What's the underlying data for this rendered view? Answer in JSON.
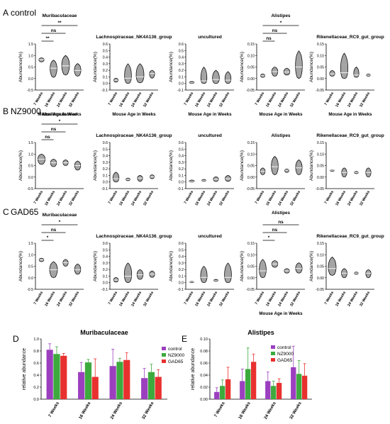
{
  "figure": {
    "panels_violin": [
      {
        "letter": "A",
        "group": "control",
        "ylabel": "Abundance(%)",
        "mid_xlabel": "Mouse Age in Weeks",
        "subplots": [
          {
            "title": "Muribaculaceae",
            "ylim": [
              -0.5,
              1.5
            ],
            "yticks": [
              "-0.5",
              "0.0",
              "0.5",
              "1.0",
              "1.5"
            ],
            "categories": [
              "7 Weeks",
              "16 Weeks",
              "24 Weeks",
              "32 Weeks"
            ],
            "medians": [
              0.82,
              0.45,
              0.55,
              0.35
            ],
            "lows": [
              0.72,
              0.05,
              0.15,
              0.1
            ],
            "highs": [
              0.9,
              0.8,
              1.0,
              0.65
            ],
            "widths": [
              0.6,
              0.8,
              0.9,
              0.75
            ],
            "sig": [
              {
                "from": 0,
                "to": 1,
                "label": "**"
              },
              {
                "from": 0,
                "to": 2,
                "label": "ns"
              },
              {
                "from": 0,
                "to": 3,
                "label": "**"
              }
            ],
            "xlabel": "Mouse Age in Weeks"
          },
          {
            "title": "Lachnospiraceae_NK4A136_group",
            "ylim": [
              -0.1,
              0.6
            ],
            "yticks": [
              "-0.1",
              "0.0",
              "0.1",
              "0.2",
              "0.3",
              "0.4",
              "0.5",
              "0.6"
            ],
            "categories": [
              "7 Weeks",
              "16 Weeks",
              "24 Weeks",
              "32 Weeks"
            ],
            "medians": [
              0.05,
              0.08,
              0.1,
              0.15
            ],
            "lows": [
              0.02,
              0.0,
              0.01,
              0.08
            ],
            "highs": [
              0.08,
              0.3,
              0.3,
              0.2
            ],
            "widths": [
              0.5,
              0.8,
              0.9,
              0.6
            ],
            "sig": [],
            "xlabel": "Mouse Age in Weeks"
          },
          {
            "title": "uncultured",
            "ylim": [
              -0.1,
              0.6
            ],
            "yticks": [
              "-0.1",
              "0.0",
              "0.1",
              "0.2",
              "0.3",
              "0.4",
              "0.5",
              "0.6"
            ],
            "categories": [
              "7 Weeks",
              "16 Weeks",
              "24 Weeks",
              "32 Weeks"
            ],
            "medians": [
              0.01,
              0.04,
              0.06,
              0.05
            ],
            "lows": [
              0.0,
              0.0,
              0.0,
              0.0
            ],
            "highs": [
              0.03,
              0.25,
              0.2,
              0.18
            ],
            "widths": [
              0.55,
              0.7,
              0.8,
              0.7
            ],
            "sig": [],
            "xlabel": "Mouse Age in Weeks"
          },
          {
            "title": "Alistipes",
            "ylim": [
              -0.05,
              0.15
            ],
            "yticks": [
              "-0.05",
              "0.00",
              "0.05",
              "0.10",
              "0.15"
            ],
            "categories": [
              "7 Weeks",
              "16 Weeks",
              "24 Weeks",
              "32 Weeks"
            ],
            "medians": [
              0.012,
              0.03,
              0.028,
              0.05
            ],
            "lows": [
              0.005,
              0.01,
              0.015,
              0.0
            ],
            "highs": [
              0.02,
              0.05,
              0.045,
              0.12
            ],
            "widths": [
              0.5,
              0.7,
              0.7,
              0.8
            ],
            "sig": [
              {
                "from": 0,
                "to": 1,
                "label": "ns"
              },
              {
                "from": 0,
                "to": 2,
                "label": "ns"
              },
              {
                "from": 0,
                "to": 3,
                "label": "*"
              }
            ],
            "xlabel": "Mouse Age in Weeks"
          },
          {
            "title": "Rikenellaceae_RC9_gut_group",
            "ylim": [
              -0.05,
              0.15
            ],
            "yticks": [
              "-0.05",
              "0.00",
              "0.05",
              "0.10",
              "0.15"
            ],
            "categories": [
              "7 Weeks",
              "16 Weeks",
              "24 Weeks",
              "32 Weeks"
            ],
            "medians": [
              0.02,
              0.025,
              0.015,
              0.015
            ],
            "lows": [
              0.01,
              0.0,
              0.005,
              0.01
            ],
            "highs": [
              0.035,
              0.11,
              0.05,
              0.02
            ],
            "widths": [
              0.6,
              0.85,
              0.6,
              0.45
            ],
            "sig": [],
            "xlabel": "Mouse Age in Weeks"
          }
        ]
      },
      {
        "letter": "B",
        "group": "NZ9000",
        "ylabel": "Abundance(%)",
        "mid_xlabel": "",
        "subplots": [
          {
            "title": "Muribaculaceae",
            "ylim": [
              -0.5,
              1.5
            ],
            "yticks": [
              "-0.5",
              "0.0",
              "0.5",
              "1.0",
              "1.5"
            ],
            "categories": [
              "7 Weeks",
              "16 Weeks",
              "24 Weeks",
              "32 Weeks"
            ],
            "medians": [
              0.78,
              0.62,
              0.62,
              0.5
            ],
            "lows": [
              0.55,
              0.45,
              0.5,
              0.3
            ],
            "highs": [
              1.0,
              0.78,
              0.75,
              0.7
            ],
            "widths": [
              0.85,
              0.7,
              0.6,
              0.7
            ],
            "sig": [
              {
                "from": 0,
                "to": 1,
                "label": "ns"
              },
              {
                "from": 0,
                "to": 2,
                "label": "ns"
              },
              {
                "from": 0,
                "to": 3,
                "label": "*"
              }
            ],
            "xlabel": ""
          },
          {
            "title": "Lachnospiraceae_NK4A136_group",
            "ylim": [
              -0.1,
              0.6
            ],
            "yticks": [
              "-0.1",
              "0.0",
              "0.1",
              "0.2",
              "0.3",
              "0.4",
              "0.5",
              "0.6"
            ],
            "categories": [
              "7 Weeks",
              "16 Weeks",
              "24 Weeks",
              "32 Weeks"
            ],
            "medians": [
              0.05,
              0.04,
              0.06,
              0.08
            ],
            "lows": [
              0.0,
              0.02,
              0.01,
              0.05
            ],
            "highs": [
              0.15,
              0.06,
              0.1,
              0.11
            ],
            "widths": [
              0.7,
              0.5,
              0.6,
              0.5
            ],
            "sig": [],
            "xlabel": ""
          },
          {
            "title": "uncultured",
            "ylim": [
              -0.1,
              0.6
            ],
            "yticks": [
              "-0.1",
              "0.0",
              "0.1",
              "0.2",
              "0.3",
              "0.4",
              "0.5",
              "0.6"
            ],
            "categories": [
              "7 Weeks",
              "16 Weeks",
              "24 Weeks",
              "32 Weeks"
            ],
            "medians": [
              0.01,
              0.02,
              0.04,
              0.05
            ],
            "lows": [
              0.0,
              0.01,
              0.01,
              0.01
            ],
            "highs": [
              0.03,
              0.04,
              0.08,
              0.1
            ],
            "widths": [
              0.6,
              0.5,
              0.6,
              0.65
            ],
            "sig": [],
            "xlabel": ""
          },
          {
            "title": "Alistipes",
            "ylim": [
              -0.05,
              0.15
            ],
            "yticks": [
              "-0.05",
              "0.00",
              "0.05",
              "0.10",
              "0.15"
            ],
            "categories": [
              "7 Weeks",
              "16 Weeks",
              "24 Weeks",
              "32 Weeks"
            ],
            "medians": [
              0.025,
              0.045,
              0.03,
              0.04
            ],
            "lows": [
              0.01,
              0.01,
              0.02,
              0.01
            ],
            "highs": [
              0.04,
              0.09,
              0.035,
              0.075
            ],
            "widths": [
              0.55,
              0.8,
              0.5,
              0.75
            ],
            "sig": [],
            "xlabel": "Alistipes"
          },
          {
            "title": "Rikenellaceae_RC9_gut_group",
            "ylim": [
              -0.05,
              0.15
            ],
            "yticks": [
              "-0.05",
              "0.00",
              "0.05",
              "0.10",
              "0.15"
            ],
            "categories": [
              "7 Weeks",
              "16 Weeks",
              "24 Weeks",
              "32 Weeks"
            ],
            "medians": [
              0.03,
              0.02,
              0.02,
              0.02
            ],
            "lows": [
              0.025,
              0.0,
              0.015,
              0.0
            ],
            "highs": [
              0.032,
              0.04,
              0.025,
              0.04
            ],
            "widths": [
              0.5,
              0.6,
              0.45,
              0.6
            ],
            "sig": [],
            "xlabel": ""
          }
        ]
      },
      {
        "letter": "C",
        "group": "GAD65",
        "ylabel": "Abundance(%)",
        "mid_xlabel": "",
        "subplots": [
          {
            "title": "Muribaculaceae",
            "ylim": [
              -0.5,
              1.5
            ],
            "yticks": [
              "-0.5",
              "0.0",
              "0.5",
              "1.0",
              "1.5"
            ],
            "categories": [
              "7 Weeks",
              "16 Weeks",
              "24 Weeks",
              "32 Weeks"
            ],
            "medians": [
              0.78,
              0.35,
              0.65,
              0.35
            ],
            "lows": [
              0.7,
              0.0,
              0.5,
              0.15
            ],
            "highs": [
              0.85,
              0.7,
              0.8,
              0.6
            ],
            "widths": [
              0.55,
              0.9,
              0.6,
              0.7
            ],
            "sig": [
              {
                "from": 0,
                "to": 1,
                "label": "*"
              },
              {
                "from": 0,
                "to": 2,
                "label": "ns"
              },
              {
                "from": 0,
                "to": 3,
                "label": "*"
              }
            ],
            "xlabel": ""
          },
          {
            "title": "Lachnospiraceae_NK4A136_group",
            "ylim": [
              -0.1,
              0.6
            ],
            "yticks": [
              "-0.1",
              "0.0",
              "0.1",
              "0.2",
              "0.3",
              "0.4",
              "0.5",
              "0.6"
            ],
            "categories": [
              "7 Weeks",
              "16 Weeks",
              "24 Weeks",
              "32 Weeks"
            ],
            "medians": [
              0.04,
              0.1,
              0.12,
              0.13
            ],
            "lows": [
              0.01,
              0.0,
              0.05,
              0.08
            ],
            "highs": [
              0.08,
              0.3,
              0.2,
              0.18
            ],
            "widths": [
              0.55,
              0.85,
              0.7,
              0.6
            ],
            "sig": [],
            "xlabel": ""
          },
          {
            "title": "uncultured",
            "ylim": [
              -0.1,
              0.6
            ],
            "yticks": [
              "-0.1",
              "0.0",
              "0.1",
              "0.2",
              "0.3",
              "0.4",
              "0.5",
              "0.6"
            ],
            "categories": [
              "7 Weeks",
              "16 Weeks",
              "24 Weeks",
              "32 Weeks"
            ],
            "medians": [
              0.01,
              0.08,
              0.03,
              0.08
            ],
            "lows": [
              0.0,
              0.0,
              0.02,
              0.0
            ],
            "highs": [
              0.02,
              0.25,
              0.05,
              0.3
            ],
            "widths": [
              0.5,
              0.75,
              0.5,
              0.8
            ],
            "sig": [],
            "xlabel": ""
          },
          {
            "title": "",
            "ylim": [
              -0.05,
              0.15
            ],
            "yticks": [
              "-0.05",
              "0.00",
              "0.05",
              "0.10",
              "0.15"
            ],
            "categories": [
              "7 Weeks",
              "16 Weeks",
              "24 Weeks",
              "32 Weeks"
            ],
            "medians": [
              0.03,
              0.06,
              0.03,
              0.04
            ],
            "lows": [
              0.0,
              0.045,
              0.02,
              0.02
            ],
            "highs": [
              0.08,
              0.075,
              0.04,
              0.065
            ],
            "widths": [
              0.8,
              0.7,
              0.6,
              0.75
            ],
            "sig": [
              {
                "from": 0,
                "to": 1,
                "label": "*"
              },
              {
                "from": 0,
                "to": 2,
                "label": "ns"
              },
              {
                "from": 0,
                "to": 3,
                "label": "ns"
              }
            ],
            "xlabel": "Mouse Age in Weeks"
          },
          {
            "title": "Rikenellaceae_RC9_gut_group",
            "ylim": [
              -0.05,
              0.15
            ],
            "yticks": [
              "-0.05",
              "0.00",
              "0.05",
              "0.10",
              "0.15"
            ],
            "categories": [
              "7 Weeks",
              "16 Weeks",
              "24 Weeks",
              "32 Weeks"
            ],
            "medians": [
              0.04,
              0.02,
              0.02,
              0.02
            ],
            "lows": [
              0.01,
              0.0,
              0.015,
              0.0
            ],
            "highs": [
              0.09,
              0.04,
              0.025,
              0.035
            ],
            "widths": [
              0.9,
              0.65,
              0.45,
              0.6
            ],
            "sig": [],
            "xlabel": ""
          }
        ]
      }
    ],
    "bar_ylabel": "relative abundance"
  },
  "chart_data": [
    {
      "type": "bar",
      "panel": "D",
      "title": "Muribaculaceae",
      "categories": [
        "7 Weeks",
        "16 Weeks",
        "24 Weeks",
        "32 Weeks"
      ],
      "series": [
        {
          "name": "control",
          "color": "#9B3FBF",
          "values": [
            0.82,
            0.45,
            0.55,
            0.35
          ],
          "errors": [
            0.1,
            0.16,
            0.28,
            0.16
          ]
        },
        {
          "name": "NZ9000",
          "color": "#3DAA3D",
          "values": [
            0.75,
            0.61,
            0.62,
            0.45
          ],
          "errors": [
            0.12,
            0.05,
            0.06,
            0.13
          ]
        },
        {
          "name": "GAD65",
          "color": "#E8312F",
          "values": [
            0.72,
            0.37,
            0.65,
            0.37
          ],
          "errors": [
            0.04,
            0.3,
            0.12,
            0.12
          ]
        }
      ],
      "ylabel": "relative abundance",
      "ylim": [
        0,
        1.0
      ],
      "yticks": [
        "0.0",
        "0.2",
        "0.4",
        "0.6",
        "0.8",
        "1.0"
      ],
      "legend": "right"
    },
    {
      "type": "bar",
      "panel": "E",
      "title": "Alistipes",
      "categories": [
        "7 Weeks",
        "16 Weeks",
        "24 Weeks",
        "32 Weeks"
      ],
      "series": [
        {
          "name": "control",
          "color": "#9B3FBF",
          "values": [
            0.012,
            0.03,
            0.03,
            0.053
          ],
          "errors": [
            0.007,
            0.02,
            0.015,
            0.035
          ]
        },
        {
          "name": "NZ9000",
          "color": "#3DAA3D",
          "values": [
            0.022,
            0.05,
            0.022,
            0.042
          ],
          "errors": [
            0.01,
            0.035,
            0.008,
            0.022
          ]
        },
        {
          "name": "GAD65",
          "color": "#E8312F",
          "values": [
            0.033,
            0.062,
            0.027,
            0.039
          ],
          "errors": [
            0.02,
            0.013,
            0.007,
            0.02
          ]
        }
      ],
      "ylabel": "relative abundance",
      "ylim": [
        0,
        0.1
      ],
      "yticks": [
        "0.00",
        "0.02",
        "0.04",
        "0.06",
        "0.08",
        "0.10"
      ],
      "legend": "top-right"
    }
  ]
}
